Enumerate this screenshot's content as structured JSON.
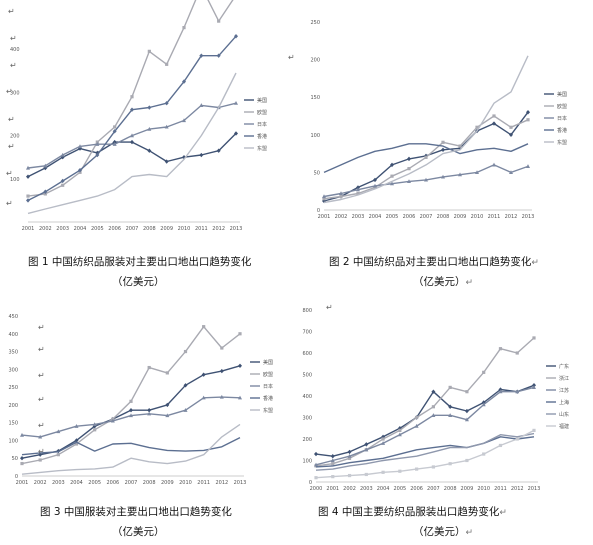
{
  "return_mark": "↵",
  "chart_data": [
    {
      "id": "fig1",
      "type": "line",
      "caption_line1": "图 1 中国纺织品服装对主要出口地出口趋势变化",
      "caption_line2": "（亿美元）",
      "x": [
        "2001",
        "2002",
        "2003",
        "2004",
        "2005",
        "2006",
        "2007",
        "2008",
        "2009",
        "2010",
        "2011",
        "2012",
        "2013"
      ],
      "ylim": [
        0,
        500
      ],
      "yticks": [],
      "visible_y_labels": [
        "400",
        "300",
        "200",
        "100"
      ],
      "legend_position": "right",
      "series": [
        {
          "name": "美国",
          "color": "#3f5273",
          "marker": "diamond",
          "values": [
            105,
            125,
            150,
            170,
            160,
            185,
            185,
            165,
            140,
            150,
            155,
            165,
            205
          ]
        },
        {
          "name": "欧盟",
          "color": "#a9aab2",
          "marker": "square",
          "values": [
            60,
            65,
            85,
            115,
            185,
            220,
            290,
            395,
            365,
            450,
            545,
            465,
            525
          ]
        },
        {
          "name": "日本",
          "color": "#7c88a1",
          "marker": "triangle",
          "values": [
            125,
            130,
            155,
            175,
            180,
            180,
            200,
            215,
            220,
            235,
            270,
            265,
            275
          ]
        },
        {
          "name": "香港",
          "color": "#5c6f91",
          "marker": "diamond",
          "values": [
            50,
            70,
            95,
            120,
            155,
            210,
            260,
            265,
            275,
            325,
            385,
            385,
            430
          ]
        },
        {
          "name": "东盟",
          "color": "#b8bcc6",
          "marker": "none",
          "values": [
            20,
            30,
            40,
            50,
            60,
            75,
            105,
            110,
            105,
            145,
            200,
            265,
            345
          ]
        }
      ]
    },
    {
      "id": "fig2",
      "type": "line",
      "caption_line1": "图 2 中国纺织品对主要出口地出口趋势变化",
      "caption_line2": "（亿美元）",
      "x": [
        "2001",
        "2002",
        "2003",
        "2004",
        "2005",
        "2006",
        "2007",
        "2008",
        "2009",
        "2010",
        "2011",
        "2012",
        "2013"
      ],
      "ylim": [
        0,
        250
      ],
      "yticks": [
        0,
        50,
        100,
        150,
        200,
        250
      ],
      "legend_position": "right",
      "series": [
        {
          "name": "美国",
          "color": "#3f5273",
          "marker": "diamond",
          "values": [
            12,
            18,
            30,
            40,
            60,
            68,
            72,
            80,
            82,
            105,
            115,
            100,
            130
          ]
        },
        {
          "name": "欧盟",
          "color": "#a9aab2",
          "marker": "square",
          "values": [
            15,
            18,
            22,
            30,
            45,
            55,
            70,
            90,
            85,
            110,
            125,
            110,
            120
          ]
        },
        {
          "name": "日本",
          "color": "#7c88a1",
          "marker": "triangle",
          "values": [
            18,
            22,
            27,
            32,
            35,
            38,
            40,
            44,
            47,
            50,
            60,
            50,
            58
          ]
        },
        {
          "name": "香港",
          "color": "#5c6f91",
          "marker": "none",
          "values": [
            50,
            60,
            70,
            78,
            82,
            88,
            88,
            85,
            75,
            80,
            82,
            78,
            88
          ]
        },
        {
          "name": "东盟",
          "color": "#b8bcc6",
          "marker": "none",
          "values": [
            10,
            14,
            20,
            28,
            38,
            48,
            60,
            75,
            80,
            105,
            142,
            157,
            205
          ]
        }
      ]
    },
    {
      "id": "fig3",
      "type": "line",
      "caption_line1": "图 3 中国服装对主要出口地出口趋势变化",
      "caption_line2": "（亿美元）",
      "x": [
        "2001",
        "2002",
        "2003",
        "2004",
        "2005",
        "2006",
        "2007",
        "2008",
        "2009",
        "2010",
        "2011",
        "2012",
        "2013"
      ],
      "ylim": [
        0,
        450
      ],
      "yticks": [
        0,
        50,
        100,
        150,
        200,
        250,
        300,
        350,
        400,
        450
      ],
      "legend_position": "right",
      "series": [
        {
          "name": "美国",
          "color": "#3f5273",
          "marker": "diamond",
          "values": [
            50,
            60,
            70,
            100,
            140,
            160,
            185,
            185,
            200,
            255,
            285,
            295,
            310
          ]
        },
        {
          "name": "欧盟",
          "color": "#a9aab2",
          "marker": "square",
          "values": [
            35,
            45,
            60,
            90,
            130,
            160,
            210,
            305,
            290,
            350,
            420,
            360,
            400
          ]
        },
        {
          "name": "日本",
          "color": "#7c88a1",
          "marker": "triangle",
          "values": [
            115,
            110,
            125,
            140,
            145,
            155,
            170,
            175,
            170,
            185,
            220,
            222,
            220
          ]
        },
        {
          "name": "香港",
          "color": "#5c6f91",
          "marker": "none",
          "values": [
            60,
            65,
            68,
            95,
            70,
            90,
            92,
            80,
            72,
            70,
            72,
            82,
            108
          ]
        },
        {
          "name": "东盟",
          "color": "#b8bcc6",
          "marker": "none",
          "values": [
            5,
            10,
            15,
            18,
            20,
            25,
            50,
            40,
            35,
            42,
            60,
            110,
            145
          ]
        }
      ]
    },
    {
      "id": "fig4",
      "type": "line",
      "caption_line1": "图 4 中国主要纺织品服装出口趋势变化",
      "caption_line2": "（亿美元）",
      "x": [
        "2000",
        "2001",
        "2002",
        "2003",
        "2004",
        "2005",
        "2006",
        "2007",
        "2008",
        "2009",
        "2010",
        "2011",
        "2012",
        "2013"
      ],
      "ylim": [
        0,
        800
      ],
      "yticks": [
        0,
        100,
        200,
        300,
        400,
        500,
        600,
        700,
        800
      ],
      "legend_position": "right",
      "series": [
        {
          "name": "广东",
          "color": "#3f5273",
          "marker": "diamond",
          "values": [
            130,
            120,
            140,
            175,
            210,
            250,
            300,
            420,
            350,
            330,
            370,
            430,
            420,
            450
          ]
        },
        {
          "name": "浙江",
          "color": "#a9aab2",
          "marker": "square",
          "values": [
            75,
            85,
            110,
            150,
            200,
            240,
            300,
            350,
            440,
            420,
            510,
            620,
            600,
            670
          ]
        },
        {
          "name": "江苏",
          "color": "#7c88a1",
          "marker": "triangle",
          "values": [
            80,
            100,
            120,
            150,
            180,
            220,
            260,
            310,
            310,
            290,
            360,
            420,
            420,
            440
          ]
        },
        {
          "name": "上海",
          "color": "#5c6f91",
          "marker": "none",
          "values": [
            70,
            75,
            90,
            100,
            110,
            130,
            150,
            160,
            170,
            160,
            180,
            210,
            200,
            210
          ]
        },
        {
          "name": "山东",
          "color": "#8f98ad",
          "marker": "none",
          "values": [
            55,
            60,
            75,
            85,
            100,
            110,
            120,
            140,
            160,
            160,
            180,
            220,
            210,
            225
          ]
        },
        {
          "name": "福建",
          "color": "#c7cad1",
          "marker": "square",
          "values": [
            20,
            25,
            30,
            35,
            45,
            50,
            60,
            70,
            85,
            100,
            130,
            170,
            200,
            240
          ]
        }
      ]
    }
  ]
}
